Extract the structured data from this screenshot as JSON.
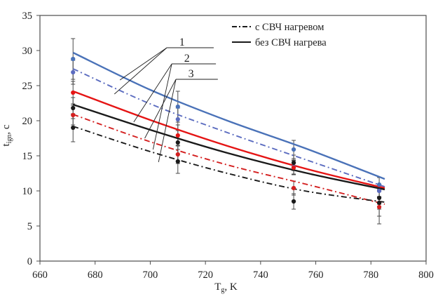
{
  "figure": {
    "background": "#ffffff",
    "frame_color": "#4d4d4d",
    "text_color": "#1f1f1f",
    "error_bar_color": "#4a4a4a"
  },
  "chart_data": {
    "type": "line",
    "title": "",
    "xlabel": {
      "main": "T",
      "sub": "g",
      "rest": ", K"
    },
    "ylabel": {
      "main": "t",
      "sub": "ign",
      "rest": ", c"
    },
    "xlim": [
      660,
      800
    ],
    "ylim": [
      0,
      35
    ],
    "x_ticks": [
      660,
      680,
      700,
      720,
      740,
      760,
      780,
      800
    ],
    "y_ticks": [
      0,
      5,
      10,
      15,
      20,
      25,
      30,
      35
    ],
    "grid": false,
    "legend": {
      "position": "top-inside",
      "items": [
        {
          "label": "с СВЧ нагревом",
          "style": "dashdot",
          "color": "#1a1a1a"
        },
        {
          "label": "без СВЧ нагрева",
          "style": "solid",
          "color": "#1a1a1a"
        }
      ]
    },
    "curve_x": [
      672,
      700,
      728,
      756,
      785
    ],
    "series": [
      {
        "id": "1-solid",
        "group": "1",
        "heating": "без СВЧ нагрева",
        "color": "#4a72b8",
        "style": "solid",
        "curve": [
          29.7,
          24.4,
          20.0,
          16.1,
          11.7
        ],
        "points": {
          "x": [
            672,
            710,
            752,
            783
          ],
          "y": [
            28.8,
            22.0,
            15.9,
            10.9
          ],
          "err": [
            2.9,
            2.2,
            1.3,
            1.0
          ]
        }
      },
      {
        "id": "1-dashdot",
        "group": "1",
        "heating": "с СВЧ нагревом",
        "color": "#5b6cc0",
        "style": "dashdot",
        "curve": [
          27.4,
          22.4,
          18.3,
          14.5,
          10.6
        ],
        "points": {
          "x": [
            672,
            710,
            752,
            783
          ],
          "y": [
            26.9,
            20.2,
            13.4,
            10.0
          ],
          "err": [
            1.7,
            1.6,
            1.0,
            0.9
          ]
        }
      },
      {
        "id": "2-solid",
        "group": "2",
        "heating": "без СВЧ нагрева",
        "color": "#e51414",
        "style": "solid",
        "curve": [
          24.2,
          20.1,
          16.4,
          13.2,
          10.4
        ],
        "points": {
          "x": [
            672,
            710,
            752,
            783
          ],
          "y": [
            24.0,
            17.9,
            13.3,
            8.3
          ],
          "err": [
            1.6,
            1.5,
            1.0,
            0.9
          ]
        }
      },
      {
        "id": "3-solid",
        "group": "3",
        "heating": "без СВЧ нагрева",
        "color": "#1a1a1a",
        "style": "solid",
        "curve": [
          22.3,
          18.7,
          15.4,
          12.6,
          10.2
        ],
        "points": {
          "x": [
            672,
            710,
            752,
            783
          ],
          "y": [
            21.8,
            16.9,
            14.0,
            9.0
          ],
          "err": [
            1.5,
            1.7,
            1.1,
            0.9
          ]
        }
      },
      {
        "id": "2-dashdot",
        "group": "2",
        "heating": "с СВЧ нагревом",
        "color": "#d42020",
        "style": "dashdot",
        "curve": [
          20.9,
          17.0,
          13.7,
          11.0,
          8.1
        ],
        "points": {
          "x": [
            672,
            710,
            752,
            783
          ],
          "y": [
            20.8,
            15.2,
            10.4,
            7.7
          ],
          "err": [
            1.4,
            1.3,
            1.0,
            2.4
          ]
        }
      },
      {
        "id": "3-dashdot",
        "group": "3",
        "heating": "с СВЧ нагревом",
        "color": "#1a1a1a",
        "style": "dashdot",
        "curve": [
          19.2,
          15.6,
          12.5,
          10.0,
          8.4
        ],
        "points": {
          "x": [
            672,
            710,
            752,
            783
          ],
          "y": [
            19.0,
            14.2,
            8.5,
            8.3
          ],
          "err": [
            2.0,
            1.7,
            1.1,
            1.9
          ]
        }
      }
    ],
    "annotations": [
      {
        "text": "1",
        "underline": {
          "y": 30.4,
          "x1": 706.0,
          "x2": 723.0
        },
        "num_x": 711.5,
        "targets": [
          [
            689.0,
            25.8
          ],
          [
            687.0,
            23.8
          ]
        ]
      },
      {
        "text": "2",
        "underline": {
          "y": 28.1,
          "x1": 707.8,
          "x2": 723.8
        },
        "num_x": 713.3,
        "targets": [
          [
            694.0,
            19.8
          ],
          [
            701.0,
            15.9
          ]
        ]
      },
      {
        "text": "3",
        "underline": {
          "y": 25.9,
          "x1": 709.3,
          "x2": 724.5
        },
        "num_x": 714.8,
        "targets": [
          [
            698.0,
            17.5
          ],
          [
            703.0,
            14.1
          ]
        ]
      }
    ]
  }
}
